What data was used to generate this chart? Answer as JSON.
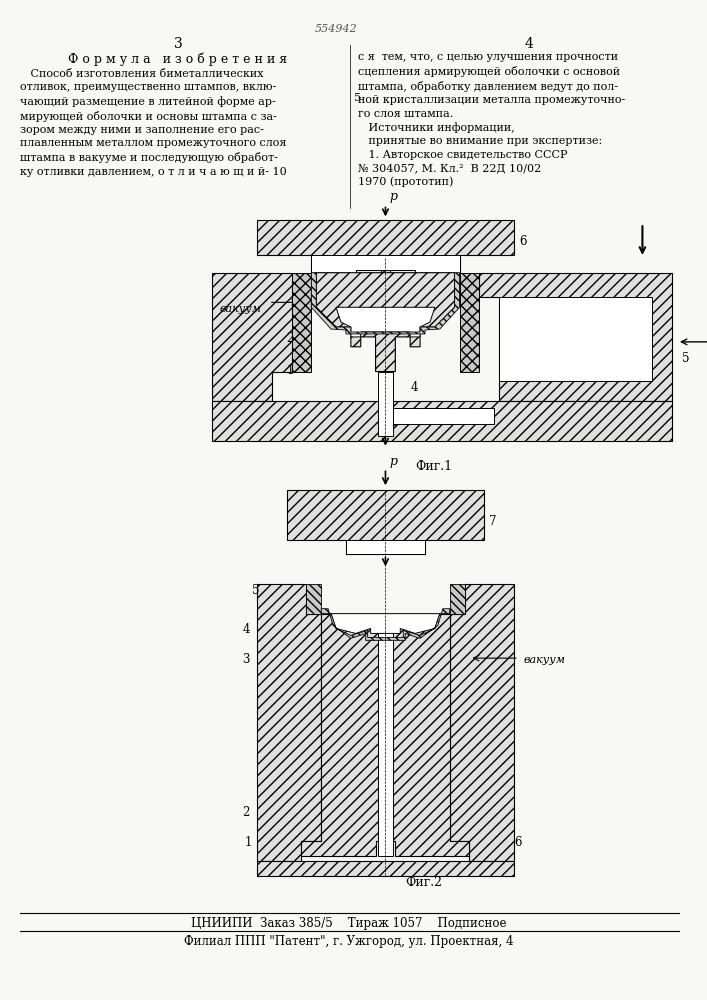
{
  "stamp_text": "554942",
  "page_num_left": "3",
  "page_num_right": "4",
  "left_heading": "Ф о р м у л а   и з о б р е т е н и я",
  "left_text": "   Способ изготовления биметаллических\nотливок, преимущественно штампов, вклю-\nчающий размещение в литейной форме ар-\nмирующей оболочки и основы штампа с за-\nзором между ними и заполнение его рас-\nплавленным металлом промежуточного слоя\nштампа в вакууме и последующую обработ-\nку отливки давлением, о т л и ч а ю щ и й- 10",
  "right_text": "с я  тем, что, с целью улучшения прочности\nсцепления армирующей оболочки с основой\nштампа, обработку давлением ведут до пол-\nной кристаллизации металла промежуточно-\nго слоя штампа.\n   Источники информации,\n   принятые во внимание при экспертизе:\n   1. Авторское свидетельство СССР\n№ 304057, М. Кл.²  В 22Д 10/02\n1970 (прототип)",
  "fig1_label": "Фиг.1",
  "fig2_label": "Фиг.2",
  "bottom_line1": "ЦНИИПИ  Заказ 385/5    Тираж 1057    Подписное",
  "bottom_line2": "Филиал ППП \"Патент\", г. Ужгород, ул. Проектная, 4",
  "bg_color": "#f8f8f4",
  "hatch_color": "#444444",
  "hatch_fc": "#e0e0e0",
  "vacuum1": "вакуум",
  "vacuum2": "вакуум",
  "label_p": "p",
  "line5": "5"
}
